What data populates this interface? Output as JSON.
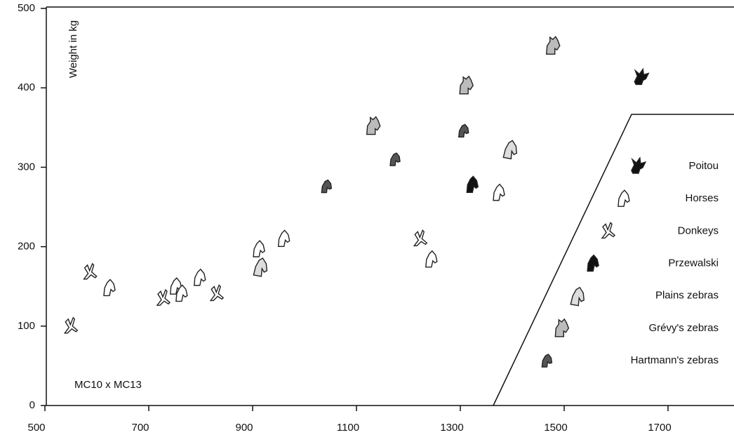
{
  "chart_data": {
    "type": "scatter",
    "y_label": "Weight in kg",
    "annotation": "MC10 x MC13",
    "xlim": [
      500,
      1830
    ],
    "xticks": [
      500,
      700,
      900,
      1100,
      1300,
      1500,
      1700
    ],
    "ylim": [
      0,
      500
    ],
    "yticks": [
      0,
      100,
      200,
      300,
      400,
      500
    ],
    "series": [
      {
        "name": "Poitou",
        "color": "#111111",
        "x": [
          1649
        ],
        "values": [
          413
        ]
      },
      {
        "name": "Horses",
        "color": "#ffffff",
        "x": [
          623,
          751,
          762,
          797,
          911,
          959,
          1243,
          1373
        ],
        "values": [
          148,
          150,
          141,
          161,
          197,
          210,
          184,
          268
        ]
      },
      {
        "name": "Donkeys",
        "color": "#ffffff",
        "x": [
          549,
          586,
          727,
          830,
          1222
        ],
        "values": [
          100,
          168,
          135,
          141,
          210
        ]
      },
      {
        "name": "Przewalski",
        "color": "#111111",
        "x": [
          1322
        ],
        "values": [
          278
        ]
      },
      {
        "name": "Plains zebras",
        "color": "#dddddd",
        "x": [
          914,
          1395
        ],
        "values": [
          175,
          323
        ]
      },
      {
        "name": "Grévy's zebras",
        "color": "#bbbbbb",
        "x": [
          1132,
          1311,
          1478
        ],
        "values": [
          352,
          403,
          453
        ]
      },
      {
        "name": "Hartmann's zebras",
        "color": "#555555",
        "x": [
          1041,
          1173,
          1305
        ],
        "values": [
          276,
          310,
          346
        ]
      }
    ]
  }
}
